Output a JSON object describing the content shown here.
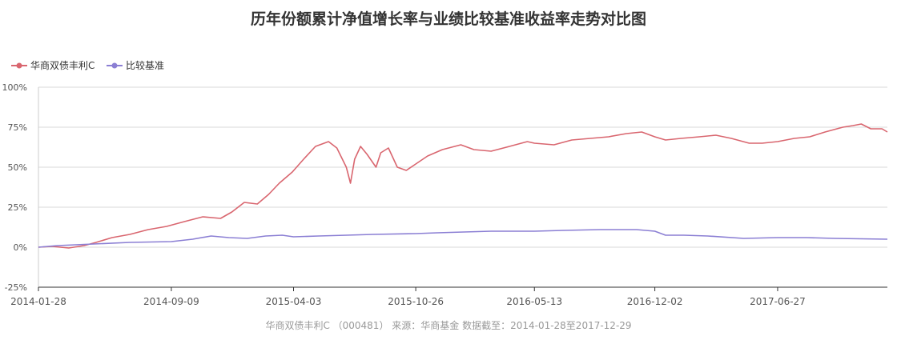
{
  "chart_data": {
    "type": "line",
    "title": "历年份额累计净值增长率与业绩比较基准收益率走势对比图",
    "footer": "华商双债丰利C （000481） 来源：华商基金 数据截至：2014-01-28至2017-12-29",
    "x_start": "2014-01-28",
    "x_end": "2017-12-29",
    "x_ticks": [
      "2014-01-28",
      "2014-09-09",
      "2015-04-03",
      "2015-10-26",
      "2016-05-13",
      "2016-12-02",
      "2017-06-27"
    ],
    "y_ticks": [
      "100%",
      "75%",
      "50%",
      "25%",
      "0%",
      "-25%"
    ],
    "ylim": [
      -25,
      100
    ],
    "grid": true,
    "legend_position": "top-left",
    "series": [
      {
        "name": "华商双债丰利C",
        "color": "#d9666f",
        "points": [
          [
            "2014-01-28",
            0
          ],
          [
            "2014-02-20",
            0.5
          ],
          [
            "2014-03-20",
            -0.5
          ],
          [
            "2014-04-15",
            1
          ],
          [
            "2014-05-05",
            3
          ],
          [
            "2014-06-01",
            6
          ],
          [
            "2014-07-01",
            8
          ],
          [
            "2014-08-01",
            11
          ],
          [
            "2014-09-01",
            13
          ],
          [
            "2014-10-01",
            16
          ],
          [
            "2014-11-01",
            19
          ],
          [
            "2014-12-01",
            18
          ],
          [
            "2014-12-20",
            22
          ],
          [
            "2015-01-10",
            28
          ],
          [
            "2015-02-01",
            27
          ],
          [
            "2015-02-20",
            33
          ],
          [
            "2015-03-10",
            40
          ],
          [
            "2015-04-01",
            47
          ],
          [
            "2015-04-20",
            55
          ],
          [
            "2015-05-10",
            63
          ],
          [
            "2015-06-01",
            66
          ],
          [
            "2015-06-15",
            62
          ],
          [
            "2015-07-01",
            50
          ],
          [
            "2015-07-08",
            40
          ],
          [
            "2015-07-15",
            55
          ],
          [
            "2015-07-25",
            63
          ],
          [
            "2015-08-05",
            58
          ],
          [
            "2015-08-20",
            50
          ],
          [
            "2015-08-28",
            59
          ],
          [
            "2015-09-10",
            62
          ],
          [
            "2015-09-25",
            50
          ],
          [
            "2015-10-10",
            48
          ],
          [
            "2015-10-26",
            52
          ],
          [
            "2015-11-15",
            57
          ],
          [
            "2015-12-10",
            61
          ],
          [
            "2016-01-10",
            64
          ],
          [
            "2016-02-01",
            61
          ],
          [
            "2016-03-01",
            60
          ],
          [
            "2016-04-01",
            63
          ],
          [
            "2016-05-01",
            66
          ],
          [
            "2016-05-13",
            65
          ],
          [
            "2016-06-15",
            64
          ],
          [
            "2016-07-15",
            67
          ],
          [
            "2016-08-15",
            68
          ],
          [
            "2016-09-15",
            69
          ],
          [
            "2016-10-15",
            71
          ],
          [
            "2016-11-10",
            72
          ],
          [
            "2016-12-02",
            69
          ],
          [
            "2016-12-20",
            67
          ],
          [
            "2017-01-15",
            68
          ],
          [
            "2017-02-15",
            69
          ],
          [
            "2017-03-15",
            70
          ],
          [
            "2017-04-10",
            68
          ],
          [
            "2017-05-10",
            65
          ],
          [
            "2017-06-01",
            65
          ],
          [
            "2017-06-27",
            66
          ],
          [
            "2017-07-25",
            68
          ],
          [
            "2017-08-20",
            69
          ],
          [
            "2017-09-15",
            72
          ],
          [
            "2017-10-15",
            75
          ],
          [
            "2017-11-01",
            76
          ],
          [
            "2017-11-15",
            77
          ],
          [
            "2017-12-01",
            74
          ],
          [
            "2017-12-20",
            74
          ],
          [
            "2017-12-29",
            72
          ]
        ]
      },
      {
        "name": "比较基准",
        "color": "#8b7fd4",
        "points": [
          [
            "2014-01-28",
            0
          ],
          [
            "2014-03-01",
            1
          ],
          [
            "2014-05-01",
            2
          ],
          [
            "2014-07-01",
            3
          ],
          [
            "2014-09-09",
            3.5
          ],
          [
            "2014-10-15",
            5
          ],
          [
            "2014-11-15",
            7
          ],
          [
            "2014-12-15",
            6
          ],
          [
            "2015-01-15",
            5.5
          ],
          [
            "2015-02-15",
            7
          ],
          [
            "2015-03-15",
            7.5
          ],
          [
            "2015-04-03",
            6.5
          ],
          [
            "2015-05-15",
            7
          ],
          [
            "2015-07-01",
            7.5
          ],
          [
            "2015-08-15",
            8
          ],
          [
            "2015-10-26",
            8.5
          ],
          [
            "2015-12-01",
            9
          ],
          [
            "2016-01-15",
            9.5
          ],
          [
            "2016-03-01",
            10
          ],
          [
            "2016-05-13",
            10
          ],
          [
            "2016-07-01",
            10.5
          ],
          [
            "2016-09-01",
            11
          ],
          [
            "2016-11-01",
            11
          ],
          [
            "2016-12-02",
            10
          ],
          [
            "2016-12-20",
            7.5
          ],
          [
            "2017-01-20",
            7.5
          ],
          [
            "2017-03-01",
            7
          ],
          [
            "2017-05-01",
            5.5
          ],
          [
            "2017-06-27",
            6
          ],
          [
            "2017-08-15",
            6
          ],
          [
            "2017-10-01",
            5.5
          ],
          [
            "2017-12-29",
            5
          ]
        ]
      }
    ]
  }
}
